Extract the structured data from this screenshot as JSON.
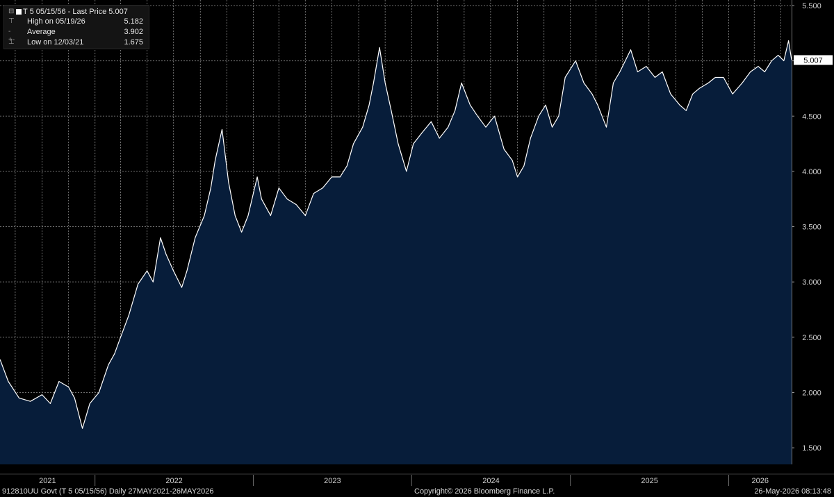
{
  "legend": {
    "title": "T 5 05/15/56 - Last Price 5.007",
    "high_label": "High on 05/19/26",
    "high_value": "5.182",
    "avg_label": "Average",
    "avg_value": "3.902",
    "low_label": "Low on 12/03/21",
    "low_value": "1.675"
  },
  "last_price_tag": "5.007",
  "footer": {
    "left": "912810UU Govt (T 5 05/15/56) Daily 27MAY2021-26MAY2026",
    "center": "Copyright© 2026 Bloomberg Finance L.P.",
    "right": "26-May-2026 08:13:48"
  },
  "colors": {
    "background": "#000000",
    "area_fill": "#071d3a",
    "line": "#ffffff",
    "grid": "#6f6f6f",
    "axis_text": "#cfcfcf"
  },
  "chart_data": {
    "type": "area",
    "title": "",
    "xlabel": "",
    "ylabel": "",
    "ylim": [
      1.35,
      5.55
    ],
    "y_ticks": [
      1.5,
      2.0,
      2.5,
      3.0,
      3.5,
      4.0,
      4.5,
      5.0,
      5.5
    ],
    "y_tick_labels": [
      "1.500",
      "2.000",
      "2.500",
      "3.000",
      "3.500",
      "4.000",
      "4.500",
      "5.000",
      "5.500"
    ],
    "x_ticks": [
      "2021",
      "2022",
      "2023",
      "2024",
      "2025",
      "2026"
    ],
    "x_range": [
      "2021-05-27",
      "2026-05-26"
    ],
    "grid": true,
    "series": [
      {
        "x": [
          "2021-05-27",
          "2021-06-15",
          "2021-07-10",
          "2021-08-05",
          "2021-09-01",
          "2021-09-20",
          "2021-10-10",
          "2021-11-01",
          "2021-11-15",
          "2021-12-03",
          "2021-12-20",
          "2022-01-10",
          "2022-02-01",
          "2022-02-15",
          "2022-03-01",
          "2022-03-20",
          "2022-04-10",
          "2022-05-01",
          "2022-05-15",
          "2022-06-01",
          "2022-06-14",
          "2022-07-01",
          "2022-07-20",
          "2022-08-01",
          "2022-08-20",
          "2022-09-10",
          "2022-09-25",
          "2022-10-05",
          "2022-10-21",
          "2022-11-05",
          "2022-11-20",
          "2022-12-05",
          "2022-12-20",
          "2023-01-10",
          "2023-01-20",
          "2023-02-10",
          "2023-03-01",
          "2023-03-20",
          "2023-04-10",
          "2023-05-01",
          "2023-05-20",
          "2023-06-10",
          "2023-07-01",
          "2023-07-20",
          "2023-08-05",
          "2023-08-20",
          "2023-09-10",
          "2023-09-25",
          "2023-10-05",
          "2023-10-19",
          "2023-11-01",
          "2023-11-15",
          "2023-12-01",
          "2023-12-20",
          "2024-01-05",
          "2024-01-25",
          "2024-02-15",
          "2024-03-05",
          "2024-03-25",
          "2024-04-10",
          "2024-04-25",
          "2024-05-15",
          "2024-06-01",
          "2024-06-20",
          "2024-07-10",
          "2024-08-01",
          "2024-08-20",
          "2024-09-01",
          "2024-09-16",
          "2024-10-01",
          "2024-10-20",
          "2024-11-05",
          "2024-11-20",
          "2024-12-05",
          "2024-12-20",
          "2025-01-13",
          "2025-02-01",
          "2025-02-20",
          "2025-03-05",
          "2025-03-25",
          "2025-04-10",
          "2025-04-25",
          "2025-05-20",
          "2025-06-05",
          "2025-06-25",
          "2025-07-15",
          "2025-08-01",
          "2025-08-20",
          "2025-09-10",
          "2025-09-25",
          "2025-10-10",
          "2025-10-25",
          "2025-11-15",
          "2025-12-01",
          "2025-12-20",
          "2026-01-10",
          "2026-02-01",
          "2026-02-20",
          "2026-03-10",
          "2026-03-25",
          "2026-04-10",
          "2026-04-25",
          "2026-05-08",
          "2026-05-19",
          "2026-05-26"
        ],
        "y": [
          2.3,
          2.1,
          1.95,
          1.92,
          1.98,
          1.9,
          2.1,
          2.05,
          1.95,
          1.675,
          1.9,
          2.0,
          2.25,
          2.35,
          2.5,
          2.7,
          2.98,
          3.1,
          3.0,
          3.4,
          3.25,
          3.1,
          2.95,
          3.1,
          3.4,
          3.6,
          3.85,
          4.1,
          4.38,
          3.9,
          3.6,
          3.45,
          3.6,
          3.95,
          3.75,
          3.6,
          3.85,
          3.75,
          3.7,
          3.6,
          3.8,
          3.85,
          3.95,
          3.95,
          4.05,
          4.25,
          4.4,
          4.6,
          4.8,
          5.12,
          4.8,
          4.55,
          4.25,
          4.0,
          4.25,
          4.35,
          4.45,
          4.3,
          4.4,
          4.55,
          4.8,
          4.6,
          4.5,
          4.4,
          4.5,
          4.2,
          4.1,
          3.95,
          4.05,
          4.3,
          4.5,
          4.6,
          4.4,
          4.5,
          4.85,
          5.0,
          4.8,
          4.7,
          4.6,
          4.4,
          4.8,
          4.9,
          5.1,
          4.9,
          4.95,
          4.85,
          4.9,
          4.7,
          4.6,
          4.55,
          4.7,
          4.75,
          4.8,
          4.85,
          4.85,
          4.7,
          4.8,
          4.9,
          4.95,
          4.9,
          5.0,
          5.05,
          5.0,
          5.182,
          5.007
        ]
      }
    ]
  }
}
